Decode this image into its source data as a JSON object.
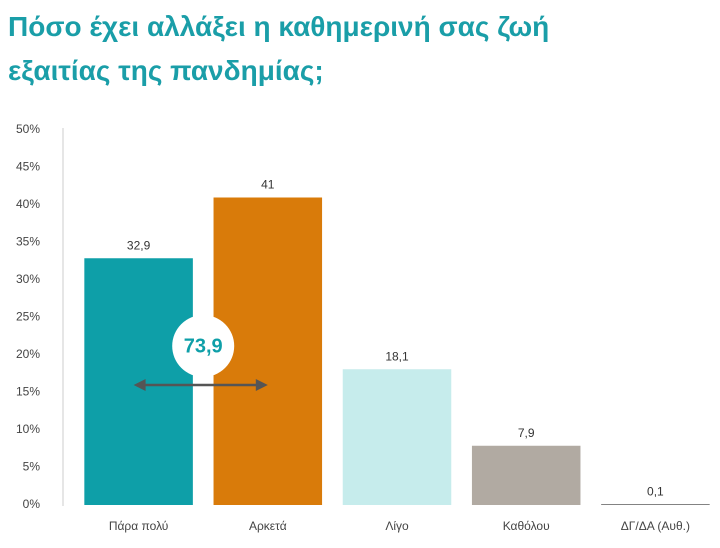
{
  "chart_data": {
    "type": "bar",
    "title": [
      "Πόσο έχει αλλάξει η καθημερινή σας ζωή",
      "εξαιτίας της πανδημίας;"
    ],
    "categories": [
      "Πάρα πολύ",
      "Αρκετά",
      "Λίγο",
      "Καθόλου",
      "ΔΓ/ΔΑ (Αυθ.)"
    ],
    "values": [
      32.9,
      41,
      18.1,
      7.9,
      0.1
    ],
    "value_labels": [
      "32,9",
      "41",
      "18,1",
      "7,9",
      "0,1"
    ],
    "colors": [
      "#0e9fa8",
      "#d97b0a",
      "#c6ecec",
      "#b1aaa2",
      "#5a5a5a"
    ],
    "ylim": [
      0,
      50
    ],
    "yticks": [
      {
        "value": 0,
        "label": "0%"
      },
      {
        "value": 5,
        "label": "5%"
      },
      {
        "value": 10,
        "label": "10%"
      },
      {
        "value": 15,
        "label": "15%"
      },
      {
        "value": 20,
        "label": "20%"
      },
      {
        "value": 25,
        "label": "25%"
      },
      {
        "value": 30,
        "label": "30%"
      },
      {
        "value": 35,
        "label": "35%"
      },
      {
        "value": 40,
        "label": "40%"
      },
      {
        "value": 45,
        "label": "45%"
      },
      {
        "value": 50,
        "label": "50%"
      }
    ],
    "annotation": "73,9",
    "grid": false
  }
}
